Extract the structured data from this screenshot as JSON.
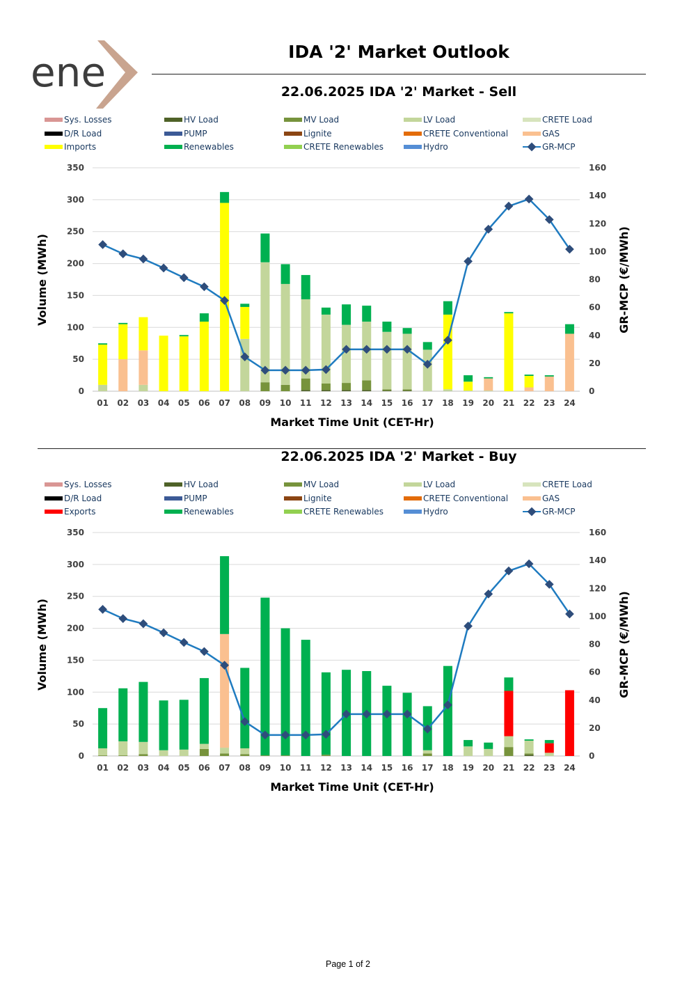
{
  "logo": {
    "text": "ene",
    "colors": {
      "text": "#3d3d3d",
      "mark": "#c9a48f"
    }
  },
  "header": {
    "title": "IDA '2' Market Outlook"
  },
  "footer": {
    "page_label": "Page 1 of 2"
  },
  "colors": {
    "Sys. Losses": "#d99694",
    "HV Load": "#4f6228",
    "MV Load": "#77933c",
    "LV Load": "#c3d69b",
    "CRETE Load": "#d7e4bd",
    "D/R Load": "#000000",
    "PUMP": "#3c5a96",
    "Lignite": "#8b4513",
    "CRETE Conventional": "#e36c09",
    "GAS": "#fac090",
    "Imports": "#ffff00",
    "Exports": "#ff0000",
    "Renewables": "#00b050",
    "CRETE Renewables": "#92d050",
    "Hydro": "#558ed5",
    "GR-MCP": "#1f7bc0",
    "GR-MCP-marker": "#2e4d7b",
    "legend-text": "#17375e"
  },
  "chart_data": [
    {
      "type": "bar",
      "stacked": true,
      "title": "22.06.2025  IDA '2' Market - Sell",
      "xlabel": "Market Time Unit (CET-Hr)",
      "ylabel": "Volume (MWh)",
      "y2label": "GR-MCP (€/MWh)",
      "ylim": [
        0,
        350
      ],
      "yticks": [
        0,
        50,
        100,
        150,
        200,
        250,
        300,
        350
      ],
      "y2lim": [
        0,
        160
      ],
      "y2ticks": [
        0,
        20,
        40,
        60,
        80,
        100,
        120,
        140,
        160
      ],
      "grid": true,
      "legend_position": "top",
      "legend": [
        "Sys. Losses",
        "HV Load",
        "MV Load",
        "LV Load",
        "CRETE Load",
        "D/R Load",
        "PUMP",
        "Lignite",
        "CRETE Conventional",
        "GAS",
        "Imports",
        "Renewables",
        "CRETE Renewables",
        "Hydro",
        "GR-MCP"
      ],
      "categories": [
        "01",
        "02",
        "03",
        "04",
        "05",
        "06",
        "07",
        "08",
        "09",
        "10",
        "11",
        "12",
        "13",
        "14",
        "15",
        "16",
        "17",
        "18",
        "19",
        "20",
        "21",
        "22",
        "23",
        "24"
      ],
      "series": [
        {
          "name": "HV Load",
          "values": [
            0,
            0,
            0,
            0,
            0,
            0,
            0,
            0,
            0,
            0,
            2,
            2,
            2,
            2,
            1,
            1,
            0,
            0,
            0,
            0,
            0,
            0,
            0,
            0
          ]
        },
        {
          "name": "MV Load",
          "values": [
            0,
            0,
            0,
            0,
            0,
            0,
            0,
            0,
            14,
            10,
            18,
            10,
            11,
            15,
            2,
            2,
            0,
            0,
            0,
            0,
            0,
            0,
            0,
            0
          ]
        },
        {
          "name": "LV Load",
          "values": [
            10,
            0,
            10,
            0,
            0,
            0,
            0,
            82,
            188,
            158,
            124,
            108,
            91,
            92,
            90,
            87,
            65,
            3,
            1,
            1,
            0,
            0,
            0,
            0
          ]
        },
        {
          "name": "GAS",
          "values": [
            0,
            50,
            54,
            0,
            0,
            0,
            0,
            0,
            0,
            0,
            0,
            0,
            0,
            0,
            0,
            0,
            0,
            0,
            0,
            19,
            0,
            6,
            23,
            90
          ]
        },
        {
          "name": "Imports",
          "values": [
            63,
            55,
            52,
            87,
            86,
            109,
            295,
            50,
            0,
            0,
            0,
            0,
            0,
            0,
            0,
            0,
            0,
            117,
            14,
            0,
            122,
            18,
            0,
            0
          ]
        },
        {
          "name": "Renewables",
          "values": [
            2,
            2,
            0,
            0,
            2,
            13,
            17,
            5,
            45,
            31,
            38,
            11,
            32,
            25,
            16,
            9,
            12,
            21,
            10,
            2,
            2,
            2,
            2,
            15
          ]
        }
      ],
      "line": {
        "name": "GR-MCP",
        "values": [
          105,
          98.4,
          94.7,
          88.2,
          81.3,
          74.8,
          65,
          24.6,
          15,
          15,
          15,
          15.5,
          30,
          30,
          30,
          30,
          19.3,
          36.5,
          93,
          116,
          132.5,
          137.6,
          122.9,
          101.7
        ]
      }
    },
    {
      "type": "bar",
      "stacked": true,
      "title": "22.06.2025  IDA '2' Market - Buy",
      "xlabel": "Market Time Unit (CET-Hr)",
      "ylabel": "Volume (MWh)",
      "y2label": "GR-MCP (€/MWh)",
      "ylim": [
        0,
        350
      ],
      "yticks": [
        0,
        50,
        100,
        150,
        200,
        250,
        300,
        350
      ],
      "y2lim": [
        0,
        160
      ],
      "y2ticks": [
        0,
        20,
        40,
        60,
        80,
        100,
        120,
        140,
        160
      ],
      "grid": true,
      "legend_position": "top",
      "legend": [
        "Sys. Losses",
        "HV Load",
        "MV Load",
        "LV Load",
        "CRETE Load",
        "D/R Load",
        "PUMP",
        "Lignite",
        "CRETE Conventional",
        "GAS",
        "Exports",
        "Renewables",
        "CRETE Renewables",
        "Hydro",
        "GR-MCP"
      ],
      "categories": [
        "01",
        "02",
        "03",
        "04",
        "05",
        "06",
        "07",
        "08",
        "09",
        "10",
        "11",
        "12",
        "13",
        "14",
        "15",
        "16",
        "17",
        "18",
        "19",
        "20",
        "21",
        "22",
        "23",
        "24"
      ],
      "series": [
        {
          "name": "HV Load",
          "values": [
            0,
            0,
            0,
            0,
            0,
            0,
            0,
            0,
            0,
            0,
            0,
            0,
            0,
            0,
            0,
            0,
            0,
            0,
            0,
            0,
            0,
            2,
            0,
            0
          ]
        },
        {
          "name": "MV Load",
          "values": [
            1,
            1,
            3,
            0,
            0,
            11,
            4,
            3,
            1,
            1,
            0,
            2,
            0,
            0,
            0,
            0,
            4,
            0,
            0,
            0,
            14,
            2,
            0,
            0
          ]
        },
        {
          "name": "LV Load",
          "values": [
            11,
            22,
            19,
            9,
            10,
            8,
            9,
            9,
            0,
            0,
            0,
            0,
            0,
            0,
            0,
            0,
            5,
            0,
            15,
            11,
            17,
            20,
            5,
            0
          ]
        },
        {
          "name": "GAS",
          "values": [
            0,
            0,
            0,
            0,
            0,
            0,
            178,
            0,
            0,
            0,
            0,
            0,
            0,
            0,
            0,
            0,
            0,
            0,
            0,
            0,
            0,
            0,
            0,
            0
          ]
        },
        {
          "name": "Exports",
          "values": [
            0,
            0,
            0,
            0,
            0,
            0,
            0,
            0,
            0,
            0,
            0,
            0,
            0,
            0,
            0,
            0,
            0,
            0,
            0,
            0,
            71,
            0,
            15,
            103
          ]
        },
        {
          "name": "Renewables",
          "values": [
            63,
            83,
            94,
            78,
            78,
            103,
            122,
            126,
            247,
            199,
            182,
            129,
            135,
            133,
            110,
            99,
            69,
            141,
            10,
            10,
            21,
            2,
            5,
            0
          ]
        }
      ],
      "line": {
        "name": "GR-MCP",
        "values": [
          105,
          98.4,
          94.7,
          88.2,
          81.3,
          74.8,
          65,
          24.6,
          15,
          15,
          15,
          15.5,
          30,
          30,
          30,
          30,
          19.3,
          36.5,
          93,
          116,
          132.5,
          137.6,
          122.9,
          101.7
        ]
      }
    }
  ]
}
